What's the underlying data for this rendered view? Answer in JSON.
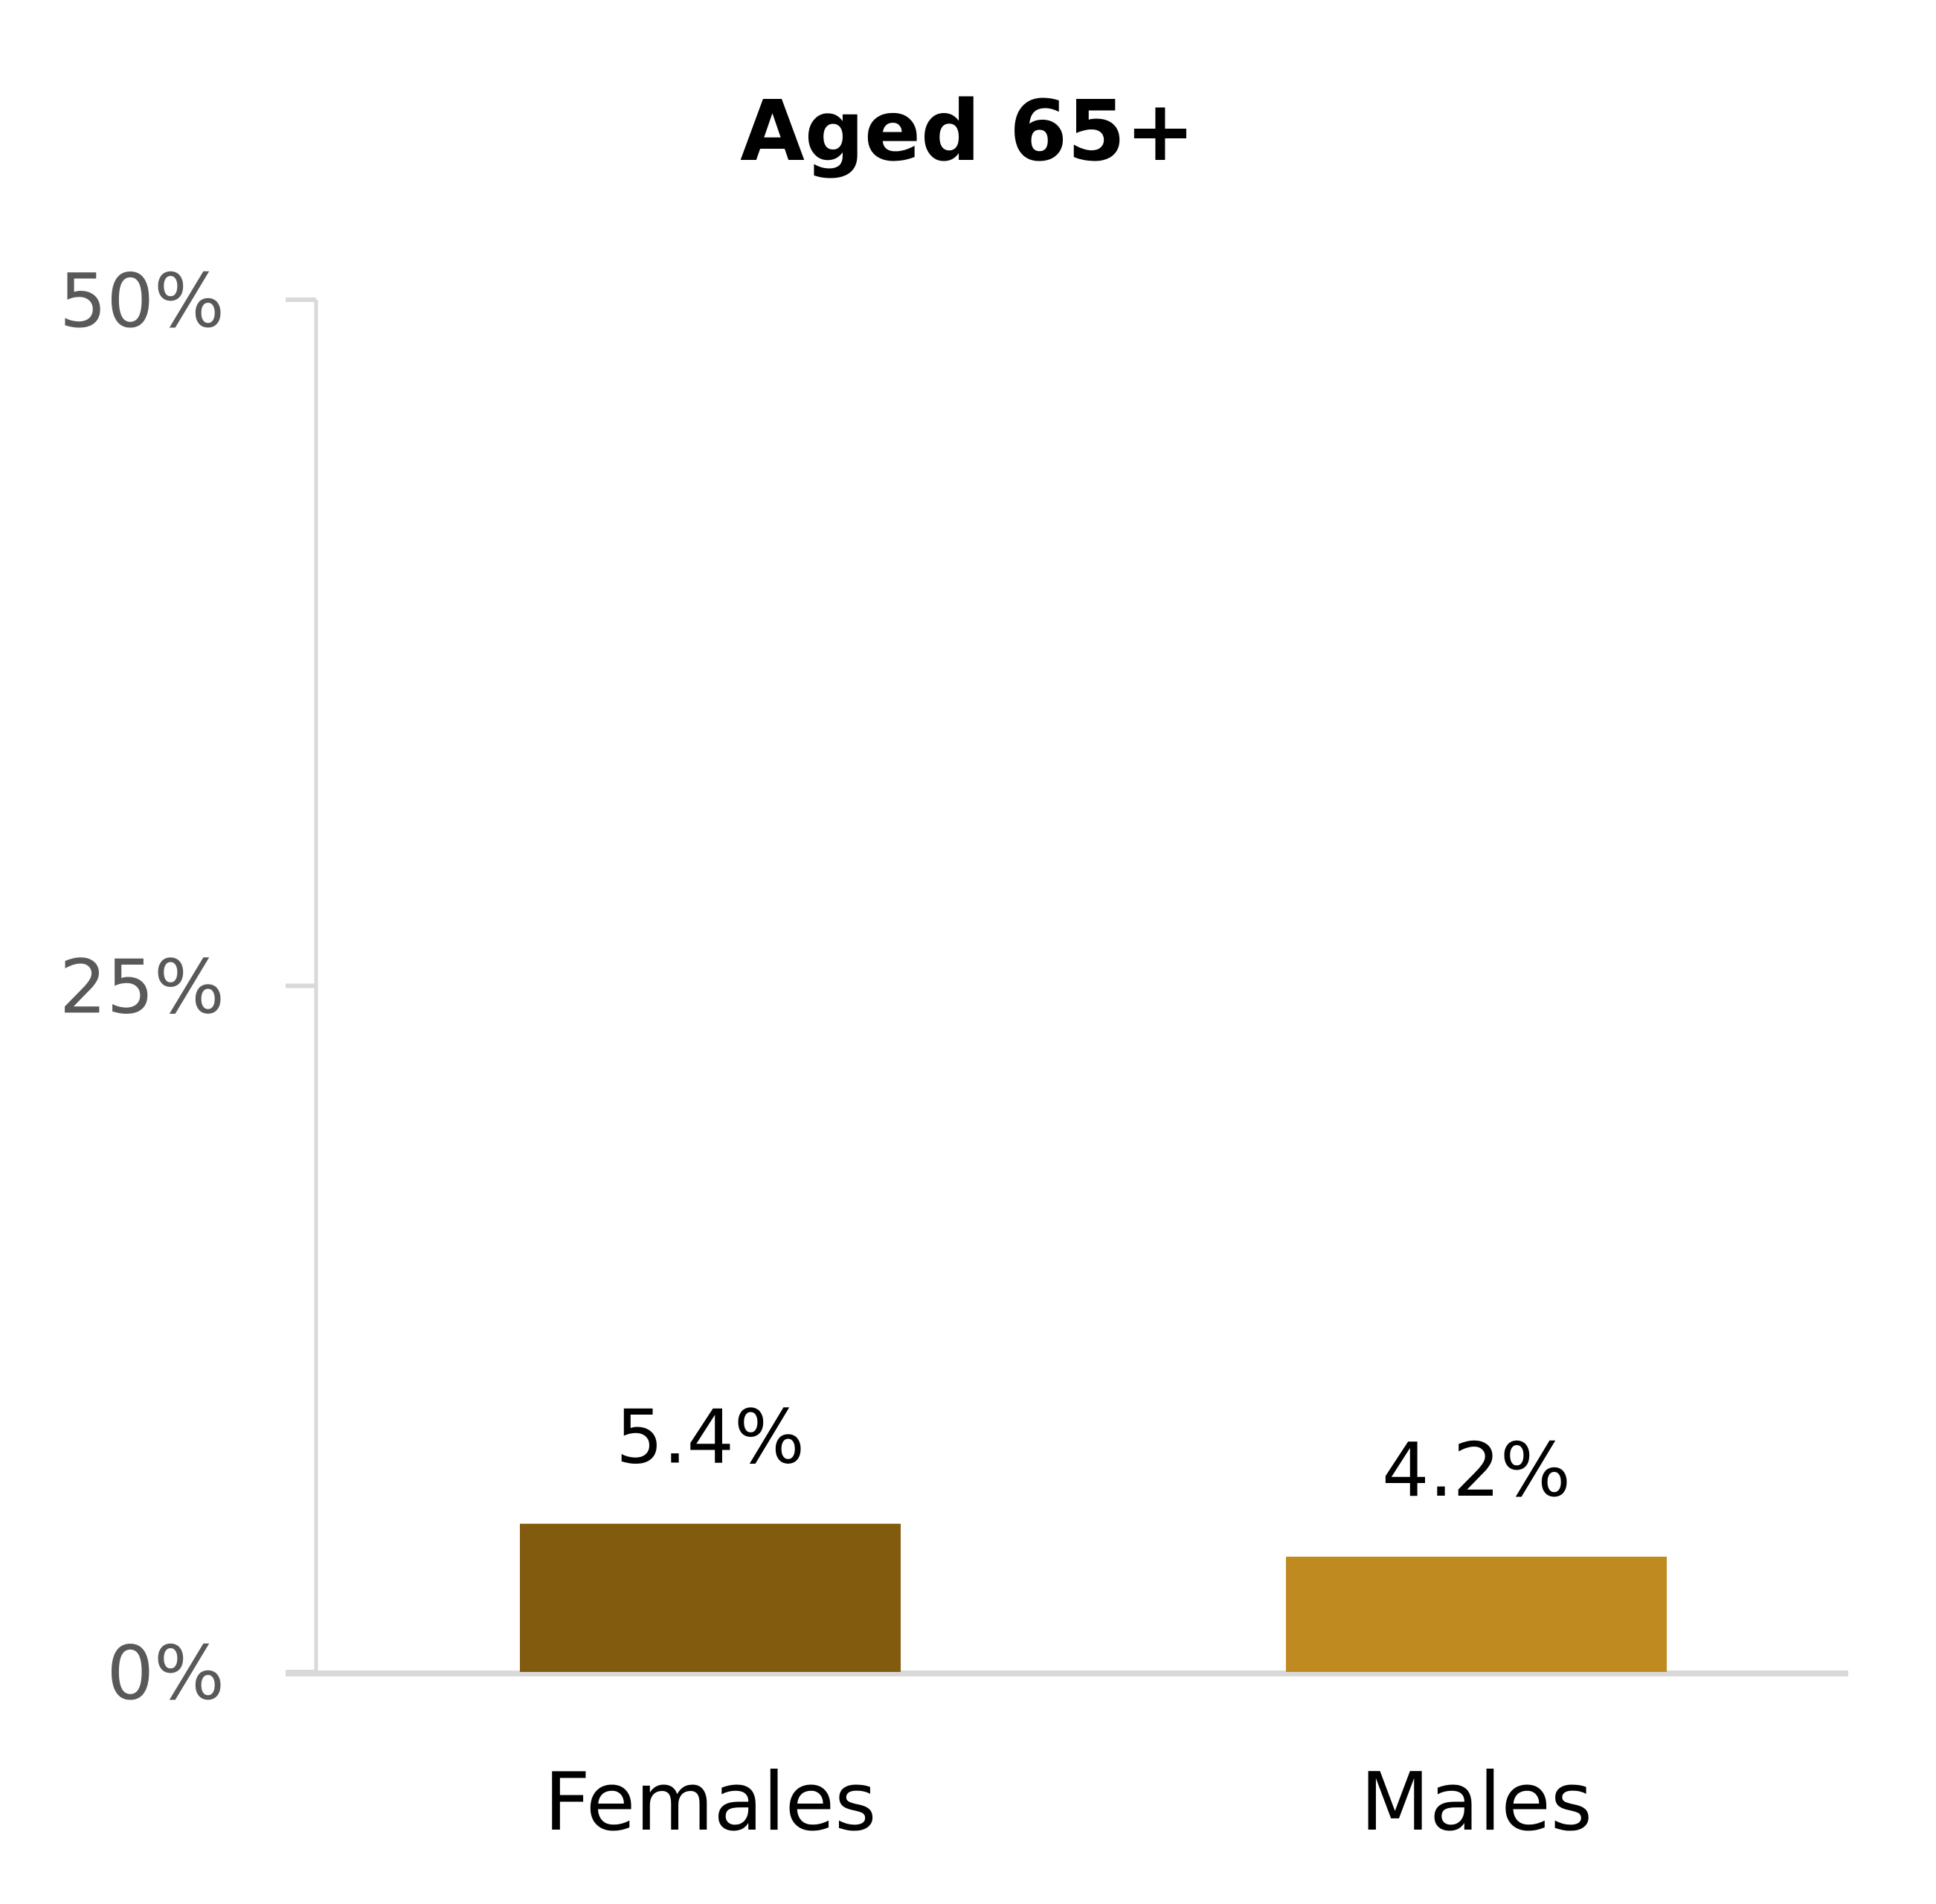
{
  "chart_data": {
    "type": "bar",
    "title": "Aged 65+",
    "categories": [
      "Females",
      "Males"
    ],
    "values": [
      5.4,
      4.2
    ],
    "data_labels": [
      "5.4%",
      "4.2%"
    ],
    "colors": [
      "#825B0E",
      "#BF8A20"
    ],
    "ylim": [
      0,
      50
    ],
    "yticks": [
      0,
      25,
      50
    ],
    "ytick_labels": [
      "0%",
      "25%",
      "50%"
    ],
    "xlabel": "",
    "ylabel": "",
    "grid": false,
    "axis_color": "#D9D9D9"
  }
}
